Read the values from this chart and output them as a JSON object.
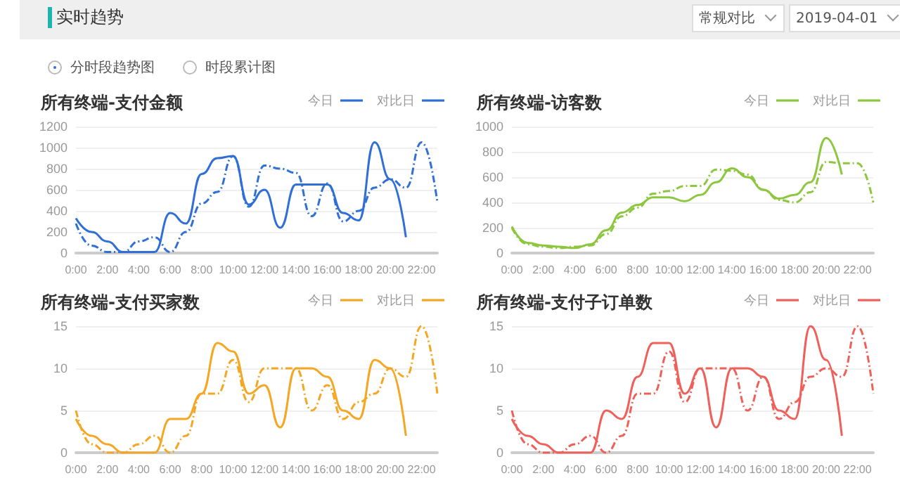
{
  "chart_data": [
    {
      "type": "other",
      "title": "实时趋势",
      "annotations": [
        "常规对比",
        "2019-04-01",
        "分时段趋势图",
        "时段累计图"
      ]
    },
    {
      "type": "line",
      "title": "所有终端-支付金额",
      "categories": [
        "0:00",
        null,
        "2:00",
        null,
        "4:00",
        null,
        "6:00",
        null,
        "8:00",
        null,
        "10:00",
        null,
        "12:00",
        null,
        "14:00",
        null,
        "16:00",
        null,
        "18:00",
        null,
        "20:00",
        null,
        "22:00",
        null
      ],
      "series": [
        {
          "name": "今日",
          "color": "#2f6fd6",
          "line_style": "solid",
          "values": [
            330,
            200,
            110,
            10,
            10,
            10,
            380,
            280,
            750,
            900,
            920,
            460,
            600,
            240,
            650,
            650,
            650,
            380,
            310,
            1050,
            700,
            150,
            null,
            null
          ]
        },
        {
          "name": "对比日",
          "color": "#2f6fd6",
          "line_style": "dashed",
          "values": [
            280,
            70,
            10,
            10,
            110,
            150,
            10,
            200,
            470,
            580,
            920,
            440,
            830,
            800,
            760,
            350,
            660,
            300,
            400,
            620,
            700,
            620,
            1050,
            480
          ]
        }
      ],
      "ylim": [
        0,
        1200
      ],
      "yticks": [
        0,
        200,
        400,
        600,
        800,
        1000,
        1200
      ],
      "grid": "y",
      "legend": "top right",
      "marker": "none"
    },
    {
      "type": "line",
      "title": "所有终端-访客数",
      "categories": [
        "0:00",
        null,
        "2:00",
        null,
        "4:00",
        null,
        "6:00",
        null,
        "8:00",
        null,
        "10:00",
        null,
        "12:00",
        null,
        "14:00",
        null,
        "16:00",
        null,
        "18:00",
        null,
        "20:00",
        null,
        "22:00",
        null
      ],
      "series": [
        {
          "name": "今日",
          "color": "#8dc63f",
          "line_style": "solid",
          "values": [
            210,
            80,
            60,
            50,
            40,
            70,
            180,
            320,
            380,
            440,
            440,
            410,
            460,
            560,
            670,
            600,
            500,
            430,
            460,
            560,
            910,
            620,
            null,
            null
          ]
        },
        {
          "name": "对比日",
          "color": "#8dc63f",
          "line_style": "dashed",
          "values": [
            200,
            70,
            50,
            40,
            50,
            60,
            150,
            290,
            360,
            470,
            490,
            530,
            530,
            660,
            650,
            620,
            500,
            420,
            400,
            480,
            720,
            710,
            710,
            400
          ]
        }
      ],
      "ylim": [
        0,
        1000
      ],
      "yticks": [
        0,
        200,
        400,
        600,
        800,
        1000
      ],
      "grid": "y",
      "legend": "top right",
      "marker": "none"
    },
    {
      "type": "line",
      "title": "所有终端-支付买家数",
      "categories": [
        "0:00",
        null,
        "2:00",
        null,
        "4:00",
        null,
        "6:00",
        null,
        "8:00",
        null,
        "10:00",
        null,
        "12:00",
        null,
        "14:00",
        null,
        "16:00",
        null,
        "18:00",
        null,
        "20:00",
        null,
        "22:00",
        null
      ],
      "series": [
        {
          "name": "今日",
          "color": "#f5a623",
          "line_style": "solid",
          "values": [
            4,
            2,
            1,
            0,
            0,
            0,
            4,
            4,
            7,
            13,
            12,
            7,
            8,
            3,
            10,
            10,
            9,
            5,
            4,
            11,
            10,
            2,
            null,
            null
          ]
        },
        {
          "name": "对比日",
          "color": "#f5a623",
          "line_style": "dashed",
          "values": [
            5,
            1,
            0,
            0,
            1,
            2,
            0,
            2,
            7,
            7,
            11,
            6,
            10,
            10,
            10,
            5,
            8,
            4,
            6,
            7,
            10,
            9,
            15,
            7
          ]
        }
      ],
      "ylim": [
        0,
        15
      ],
      "yticks": [
        0,
        5,
        10,
        15
      ],
      "grid": "y",
      "legend": "top right",
      "marker": "none"
    },
    {
      "type": "line",
      "title": "所有终端-支付子订单数",
      "categories": [
        "0:00",
        null,
        "2:00",
        null,
        "4:00",
        null,
        "6:00",
        null,
        "8:00",
        null,
        "10:00",
        null,
        "12:00",
        null,
        "14:00",
        null,
        "16:00",
        null,
        "18:00",
        null,
        "20:00",
        null,
        "22:00",
        null
      ],
      "series": [
        {
          "name": "今日",
          "color": "#f0605a",
          "line_style": "solid",
          "values": [
            4,
            2,
            1,
            0,
            0,
            0,
            5,
            4,
            9,
            13,
            13,
            7,
            10,
            3,
            10,
            10,
            9,
            5,
            4,
            15,
            11,
            2,
            null,
            null
          ]
        },
        {
          "name": "对比日",
          "color": "#f0605a",
          "line_style": "dashed",
          "values": [
            5,
            1,
            0,
            0,
            1,
            2,
            0,
            2,
            7,
            7,
            12,
            6,
            10,
            10,
            10,
            5,
            9,
            4,
            6,
            9,
            10,
            9,
            15,
            7
          ]
        }
      ],
      "ylim": [
        0,
        15
      ],
      "yticks": [
        0,
        5,
        10,
        15
      ],
      "grid": "y",
      "legend": "top right",
      "marker": "none"
    }
  ]
}
